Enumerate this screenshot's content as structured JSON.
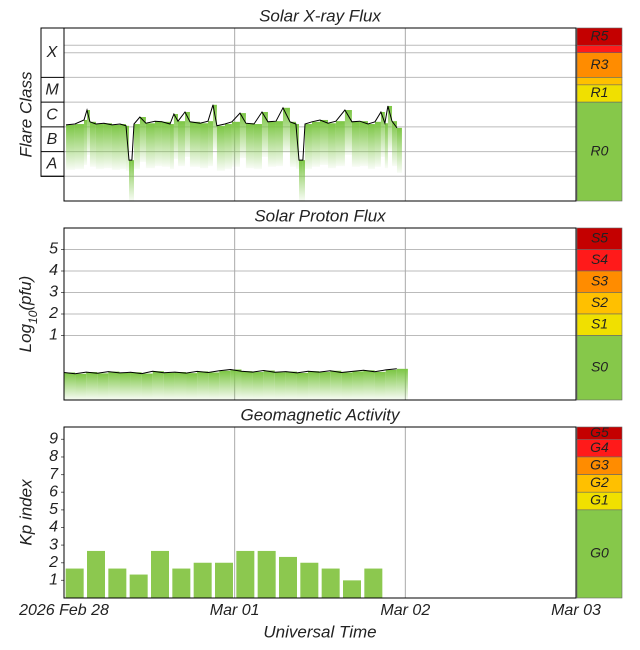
{
  "chart_data": [
    {
      "type": "area",
      "title": "Solar X-ray Flux",
      "ylabel": "Flare Class",
      "log_scale": true,
      "ylim": [
        1e-09,
        0.01
      ],
      "yticks": [
        {
          "value": 3e-08,
          "label": "A"
        },
        {
          "value": 3e-07,
          "label": "B"
        },
        {
          "value": 3e-06,
          "label": "C"
        },
        {
          "value": 3e-05,
          "label": "M"
        },
        {
          "value": 0.001,
          "label": "X"
        }
      ],
      "ygrid": [
        1e-08,
        1e-07,
        1e-06,
        1e-05,
        0.0001,
        0.001,
        0.002
      ],
      "line_color": "#000000",
      "fill_color": "#7cc644",
      "x": [
        0.012,
        0.064,
        0.117,
        0.135,
        0.152,
        0.187,
        0.234,
        0.281,
        0.328,
        0.363,
        0.381,
        0.398,
        0.41,
        0.445,
        0.48,
        0.533,
        0.574,
        0.621,
        0.644,
        0.668,
        0.709,
        0.738,
        0.797,
        0.844,
        0.873,
        0.896,
        0.943,
        0.984,
        1.031,
        1.066,
        1.113,
        1.16,
        1.195,
        1.242,
        1.283,
        1.324,
        1.359,
        1.377,
        1.4,
        1.412,
        1.453,
        1.5,
        1.547,
        1.593,
        1.646,
        1.687,
        1.734,
        1.781,
        1.822,
        1.857,
        1.88,
        1.898,
        1.922,
        1.951
      ],
      "values": [
        1.2e-06,
        1.3e-06,
        1.9e-06,
        4.8e-06,
        1.6e-06,
        1.3e-06,
        1.4e-06,
        1.2e-06,
        1.3e-06,
        1.1e-06,
        4.5e-08,
        4.5e-08,
        1.3e-06,
        2.5e-06,
        1.4e-06,
        1.7e-06,
        1.6e-06,
        1.3e-06,
        3.3e-06,
        1.7e-06,
        4e-06,
        1.6e-06,
        1.4e-06,
        1.7e-06,
        7.8e-06,
        1.1e-06,
        1.3e-06,
        1.6e-06,
        3.6e-06,
        1.4e-06,
        1.3e-06,
        4e-06,
        1.6e-06,
        1.7e-06,
        5.9e-06,
        1.6e-06,
        1.3e-06,
        4.5e-08,
        4.5e-08,
        1.3e-06,
        1.6e-06,
        1.9e-06,
        1.4e-06,
        1.7e-06,
        4.8e-06,
        1.6e-06,
        1.7e-06,
        1.3e-06,
        1.6e-06,
        4e-06,
        1.4e-06,
        7e-06,
        1.7e-06,
        9.1e-07
      ],
      "scale_bands": [
        {
          "label": "R5",
          "color": "#c40000",
          "from": 0.002,
          "to": 0.01
        },
        {
          "label": null,
          "color": "#ff1a1a",
          "from": 0.001,
          "to": 0.002
        },
        {
          "label": "R3",
          "color": "#ff8c00",
          "from": 0.0001,
          "to": 0.001
        },
        {
          "label": null,
          "color": "#ffc000",
          "from": 5e-05,
          "to": 0.0001
        },
        {
          "label": "R1",
          "color": "#f0e000",
          "from": 1e-05,
          "to": 5e-05
        },
        {
          "label": "R0",
          "color": "#86c84a",
          "from": 1e-09,
          "to": 1e-05
        }
      ]
    },
    {
      "type": "area",
      "title": "Solar Proton Flux",
      "ylabel": [
        "Log",
        "10",
        "(pfu)"
      ],
      "ylim": [
        -2,
        6
      ],
      "yticks": [
        1,
        2,
        3,
        4,
        5
      ],
      "grid": true,
      "line_color": "#000000",
      "fill_color": "#7cc644",
      "x": [
        0.0,
        0.065,
        0.13,
        0.195,
        0.26,
        0.325,
        0.39,
        0.455,
        0.52,
        0.585,
        0.65,
        0.715,
        0.78,
        0.845,
        0.91,
        0.975,
        1.04,
        1.105,
        1.17,
        1.235,
        1.3,
        1.365,
        1.43,
        1.495,
        1.56,
        1.625,
        1.69,
        1.755,
        1.82,
        1.885,
        1.95
      ],
      "values": [
        -0.72,
        -0.78,
        -0.7,
        -0.76,
        -0.68,
        -0.74,
        -0.71,
        -0.77,
        -0.66,
        -0.73,
        -0.7,
        -0.75,
        -0.67,
        -0.72,
        -0.64,
        -0.58,
        -0.66,
        -0.7,
        -0.63,
        -0.71,
        -0.68,
        -0.74,
        -0.66,
        -0.7,
        -0.64,
        -0.72,
        -0.67,
        -0.62,
        -0.69,
        -0.6,
        -0.55
      ],
      "scale_bands": [
        {
          "label": "S5",
          "color": "#c40000",
          "from": 5,
          "to": 6
        },
        {
          "label": "S4",
          "color": "#ff1a1a",
          "from": 4,
          "to": 5
        },
        {
          "label": "S3",
          "color": "#ff8c00",
          "from": 3,
          "to": 4
        },
        {
          "label": "S2",
          "color": "#ffc000",
          "from": 2,
          "to": 3
        },
        {
          "label": "S1",
          "color": "#f0e000",
          "from": 1,
          "to": 2
        },
        {
          "label": "S0",
          "color": "#86c84a",
          "from": -2,
          "to": 1
        }
      ]
    },
    {
      "type": "bar",
      "title": "Geomagnetic Activity",
      "ylabel": "Kp index",
      "ylim": [
        0,
        9.7
      ],
      "yticks": [
        1,
        2,
        3,
        4,
        5,
        6,
        7,
        8,
        9
      ],
      "grid": false,
      "color": "#8cc84f",
      "x": [
        0.0625,
        0.1875,
        0.3125,
        0.4375,
        0.5625,
        0.6875,
        0.8125,
        0.9375,
        1.0625,
        1.1875,
        1.3125,
        1.4375,
        1.5625,
        1.6875,
        1.8125
      ],
      "values": [
        1.67,
        2.67,
        1.67,
        1.33,
        2.67,
        1.67,
        2.0,
        2.0,
        2.67,
        2.67,
        2.33,
        2.0,
        1.67,
        1.0,
        1.67
      ],
      "scale_bands": [
        {
          "label": "G5",
          "color": "#c40000",
          "from": 9,
          "to": 9.7
        },
        {
          "label": "G4",
          "color": "#ff1a1a",
          "from": 8,
          "to": 9
        },
        {
          "label": "G3",
          "color": "#ff8c00",
          "from": 7,
          "to": 8
        },
        {
          "label": "G2",
          "color": "#ffc000",
          "from": 6,
          "to": 7
        },
        {
          "label": "G1",
          "color": "#f0e000",
          "from": 5,
          "to": 6
        },
        {
          "label": "G0",
          "color": "#86c84a",
          "from": 0,
          "to": 5
        }
      ],
      "xlim": [
        0,
        3
      ],
      "xticks": [
        {
          "value": 0,
          "label": "2026 Feb 28"
        },
        {
          "value": 1,
          "label": "Mar 01"
        },
        {
          "value": 2,
          "label": "Mar 02"
        },
        {
          "value": 3,
          "label": "Mar 03"
        }
      ],
      "xlabel": "Universal Time"
    }
  ]
}
